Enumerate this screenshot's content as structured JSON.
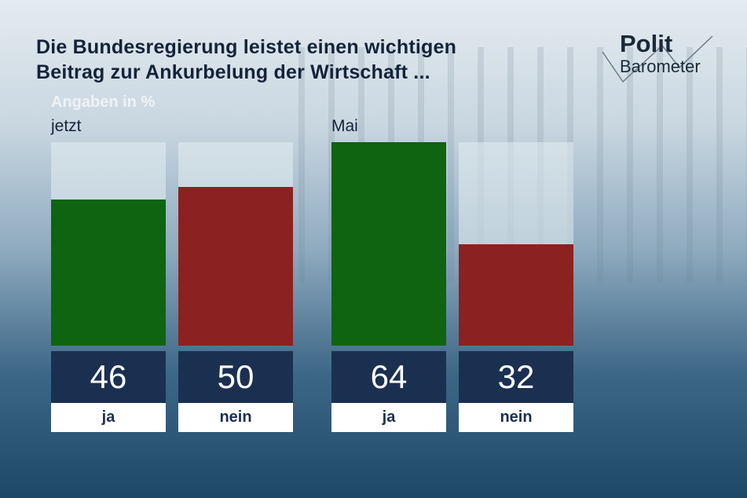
{
  "logo": {
    "line1": "Polit",
    "line2": "Barometer"
  },
  "chart_data": {
    "type": "bar",
    "title": "Die Bundesregierung leistet einen wichtigen Beitrag zur Ankurbelung der Wirtschaft ...",
    "title_lines": [
      "Die Bundesregierung leistet einen wichtigen",
      "Beitrag zur Ankurbelung der Wirtschaft ..."
    ],
    "unit_label": "Angaben in %",
    "ylim": [
      0,
      64
    ],
    "groups": [
      {
        "name": "jetzt",
        "bars": [
          {
            "category": "ja",
            "value": 46,
            "color": "#0e6411"
          },
          {
            "category": "nein",
            "value": 50,
            "color": "#8c2121"
          }
        ]
      },
      {
        "name": "Mai",
        "bars": [
          {
            "category": "ja",
            "value": 64,
            "color": "#0e6411"
          },
          {
            "category": "nein",
            "value": 32,
            "color": "#8c2121"
          }
        ]
      }
    ]
  }
}
